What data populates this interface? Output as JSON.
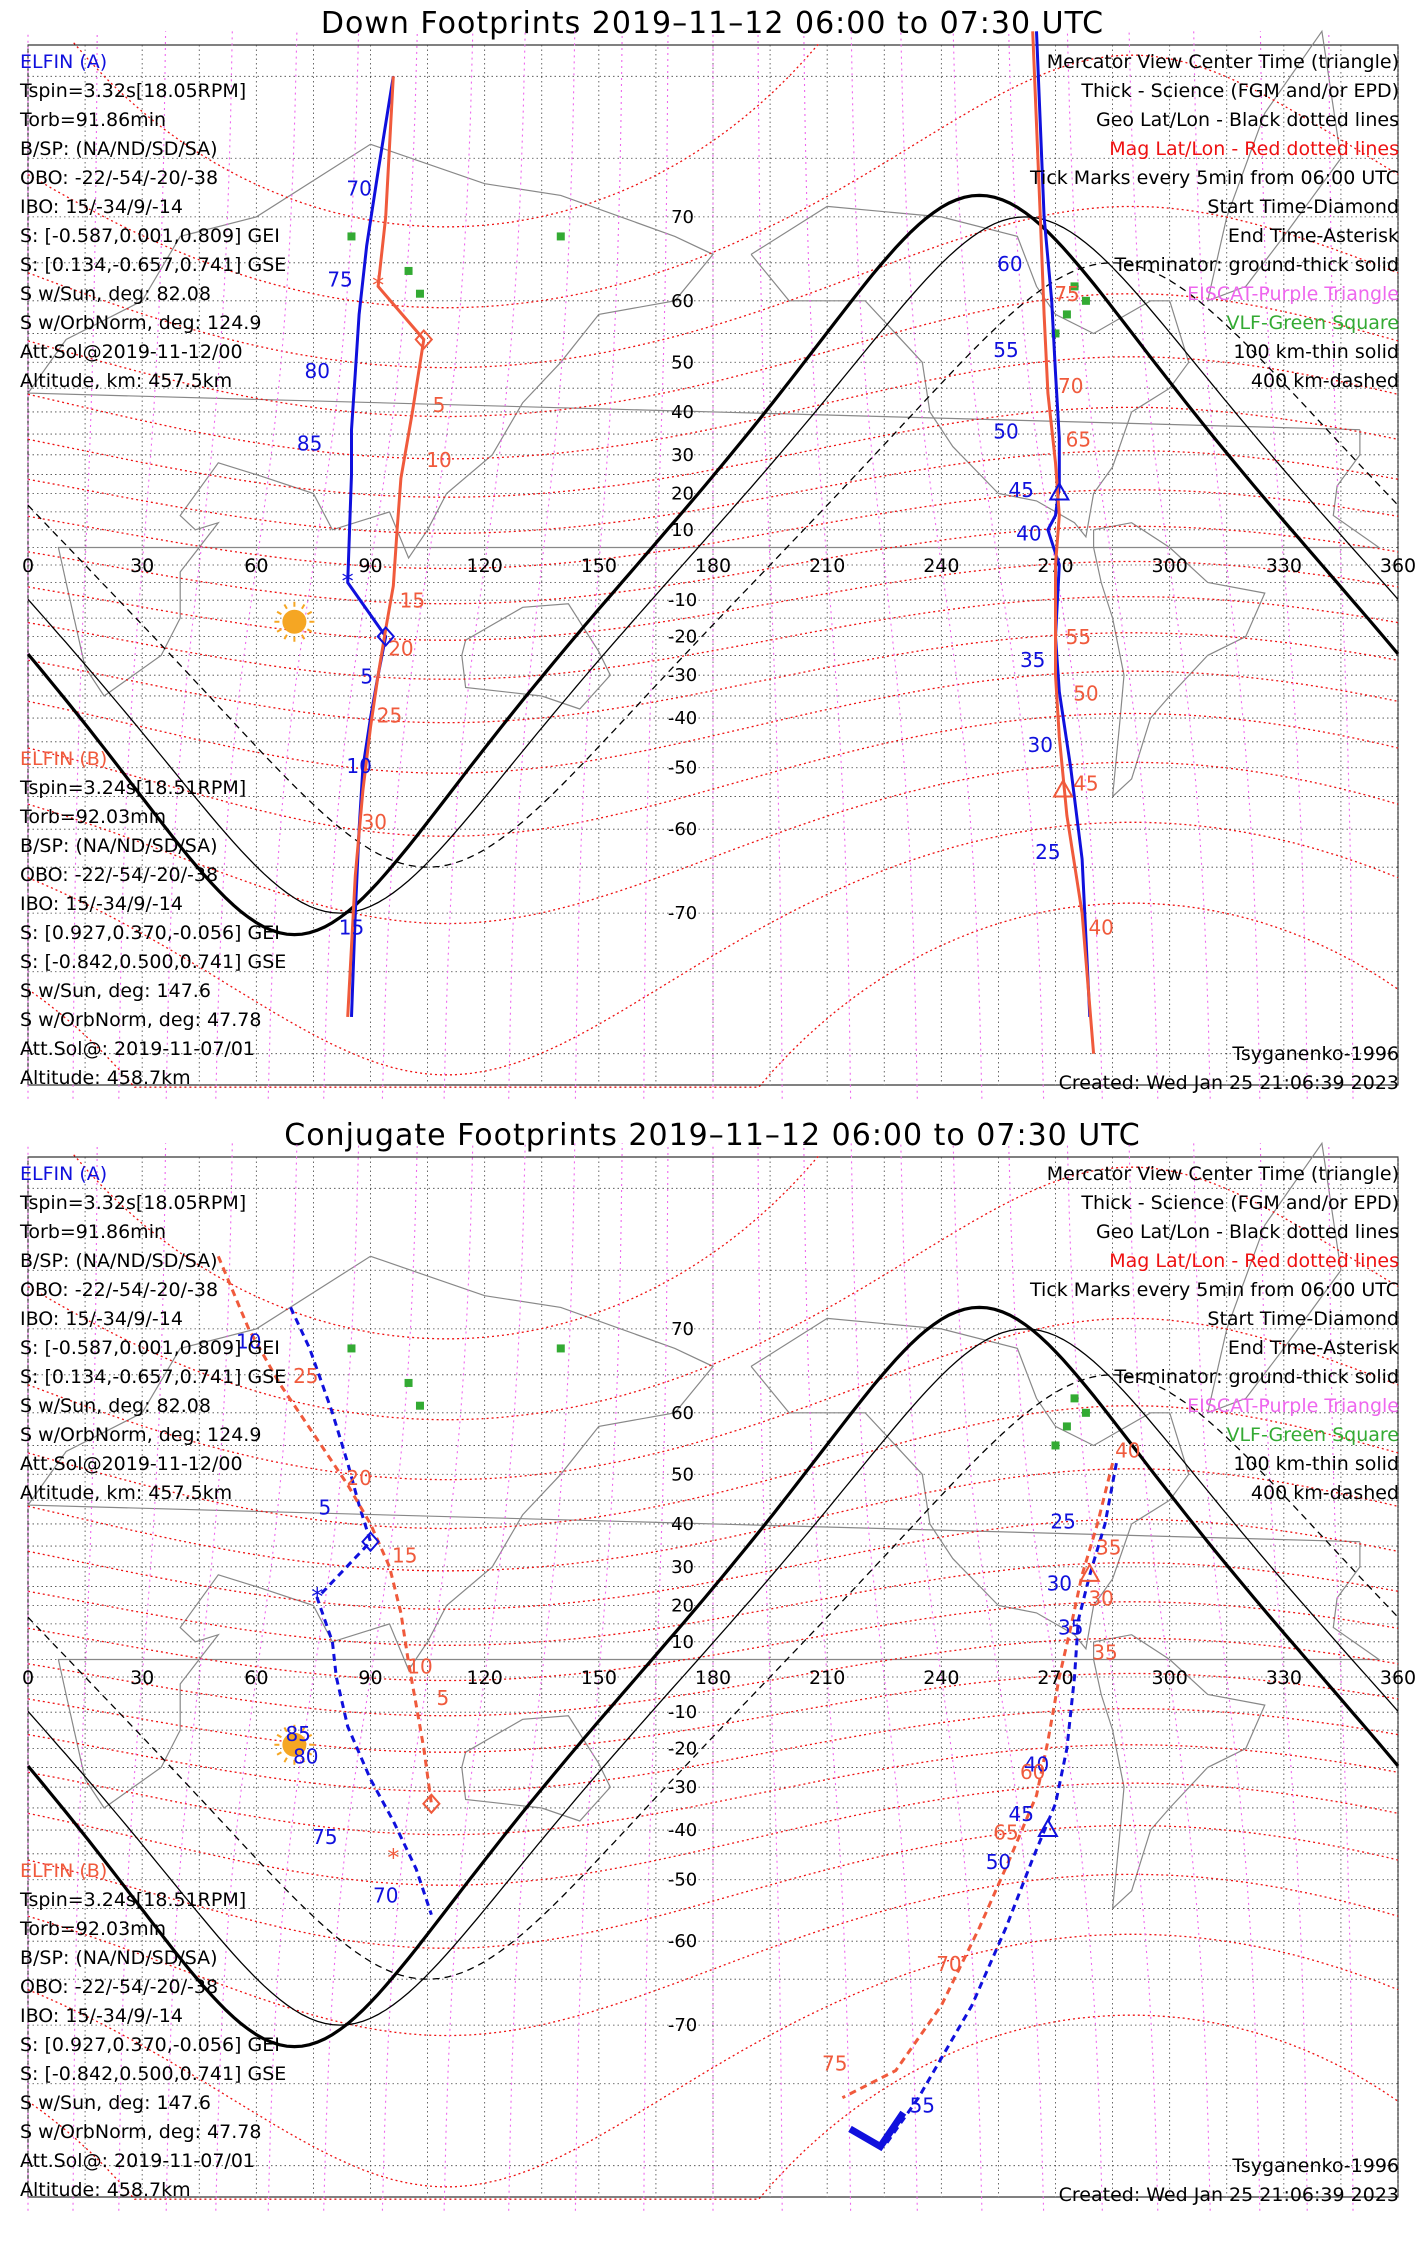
{
  "colors": {
    "elfin_a": "#1010dd",
    "elfin_b": "#f05a3c",
    "mag_grid": "#ee1111",
    "eiscat": "#ee66ee",
    "vlf": "#33aa33",
    "sun": "#f5a623"
  },
  "panels": [
    {
      "title": "Down Footprints 2019–11–12 06:00 to 07:30 UTC",
      "elfin_a": {
        "name": "ELFIN (A)",
        "lines": [
          "Tspin=3.32s[18.05RPM]",
          "Torb=91.86min",
          "B/SP: (NA/ND/SD/SA)",
          "OBO: -22/-54/-20/-38",
          "IBO: 15/-34/9/-14",
          "S: [-0.587,0.001,0.809] GEI",
          "S: [0.134,-0.657,0.741] GSE",
          "S w/Sun, deg: 82.08",
          "S w/OrbNorm, deg: 124.9",
          "Att.Sol@2019-11-12/00",
          "Altitude, km: 457.5km"
        ]
      },
      "elfin_b": {
        "name": "ELFIN (B)",
        "lines": [
          "Tspin=3.24s[18.51RPM]",
          "Torb=92.03min",
          "B/SP: (NA/ND/SD/SA)",
          "OBO: -22/-54/-20/-38",
          "IBO: 15/-34/9/-14",
          "S: [0.927,0.370,-0.056] GEI",
          "S: [-0.842,0.500,0.741] GSE",
          "S w/Sun, deg: 147.6",
          "S w/OrbNorm, deg: 47.78",
          "Att.Sol@: 2019-11-07/01",
          "Altitude: 458.7km"
        ]
      },
      "legend": [
        {
          "text": "Mercator View Center Time (triangle)",
          "color": "#000000"
        },
        {
          "text": "Thick - Science (FGM and/or EPD)",
          "color": "#000000"
        },
        {
          "text": "Geo Lat/Lon - Black dotted lines",
          "color": "#000000"
        },
        {
          "text": "Mag Lat/Lon - Red dotted lines",
          "color": "#ee1111"
        },
        {
          "text": "Tick Marks every 5min from 06:00 UTC",
          "color": "#000000"
        },
        {
          "text": "Start Time-Diamond",
          "color": "#000000"
        },
        {
          "text": "End Time-Asterisk",
          "color": "#000000"
        },
        {
          "text": "Terminator: ground-thick solid",
          "color": "#000000"
        },
        {
          "text": "EISCAT-Purple Triangle",
          "color": "#ee66ee"
        },
        {
          "text": "VLF-Green Square",
          "color": "#33aa33"
        },
        {
          "text": "100 km-thin solid",
          "color": "#000000"
        },
        {
          "text": "400 km-dashed",
          "color": "#000000"
        }
      ],
      "model": "Tsyganenko-1996",
      "created": "Created: Wed Jan 25 21:06:39 2023"
    },
    {
      "title": "Conjugate Footprints 2019–11–12 06:00 to 07:30 UTC",
      "elfin_a": {
        "name": "ELFIN (A)",
        "lines": [
          "Tspin=3.32s[18.05RPM]",
          "Torb=91.86min",
          "B/SP: (NA/ND/SD/SA)",
          "OBO: -22/-54/-20/-38",
          "IBO: 15/-34/9/-14",
          "S: [-0.587,0.001,0.809] GEI",
          "S: [0.134,-0.657,0.741] GSE",
          "S w/Sun, deg: 82.08",
          "S w/OrbNorm, deg: 124.9",
          "Att.Sol@2019-11-12/00",
          "Altitude, km: 457.5km"
        ]
      },
      "elfin_b": {
        "name": "ELFIN (B)",
        "lines": [
          "Tspin=3.24s[18.51RPM]",
          "Torb=92.03min",
          "B/SP: (NA/ND/SD/SA)",
          "OBO: -22/-54/-20/-38",
          "IBO: 15/-34/9/-14",
          "S: [0.927,0.370,-0.056] GEI",
          "S: [-0.842,0.500,0.741] GSE",
          "S w/Sun, deg: 147.6",
          "S w/OrbNorm, deg: 47.78",
          "Att.Sol@: 2019-11-07/01",
          "Altitude: 458.7km"
        ]
      },
      "legend": [
        {
          "text": "Mercator View Center Time (triangle)",
          "color": "#000000"
        },
        {
          "text": "Thick - Science (FGM and/or EPD)",
          "color": "#000000"
        },
        {
          "text": "Geo Lat/Lon - Black dotted lines",
          "color": "#000000"
        },
        {
          "text": "Mag Lat/Lon - Red dotted lines",
          "color": "#ee1111"
        },
        {
          "text": "Tick Marks every 5min from 06:00 UTC",
          "color": "#000000"
        },
        {
          "text": "Start Time-Diamond",
          "color": "#000000"
        },
        {
          "text": "End Time-Asterisk",
          "color": "#000000"
        },
        {
          "text": "Terminator: ground-thick solid",
          "color": "#000000"
        },
        {
          "text": "EISCAT-Purple Triangle",
          "color": "#ee66ee"
        },
        {
          "text": "VLF-Green Square",
          "color": "#33aa33"
        },
        {
          "text": "100 km-thin solid",
          "color": "#000000"
        },
        {
          "text": "400 km-dashed",
          "color": "#000000"
        }
      ],
      "model": "Tsyganenko-1996",
      "created": "Created: Wed Jan 25 21:06:39 2023"
    }
  ],
  "map": {
    "lon_labels": [
      "0",
      "30",
      "60",
      "90",
      "120",
      "150",
      "180",
      "210",
      "240",
      "270",
      "300",
      "330",
      "360"
    ],
    "lat_labels": [
      "70",
      "60",
      "50",
      "40",
      "30",
      "20",
      "10",
      "-10",
      "-20",
      "-30",
      "-40",
      "-50",
      "-60",
      "-70"
    ]
  },
  "tracks": {
    "down_a": [
      {
        "lon": 96,
        "lat": 80
      },
      {
        "lon": 92,
        "lat": 74
      },
      {
        "lon": 89,
        "lat": 67
      },
      {
        "lon": 87,
        "lat": 58
      },
      {
        "lon": 86,
        "lat": 48
      },
      {
        "lon": 85,
        "lat": 36
      },
      {
        "lon": 85,
        "lat": 25
      },
      {
        "lon": 84,
        "lat": -5
      },
      {
        "lon": 94,
        "lat": -20
      },
      {
        "lon": 92,
        "lat": -30
      },
      {
        "lon": 90,
        "lat": -40
      },
      {
        "lon": 88,
        "lat": -50
      },
      {
        "lon": 87,
        "lat": -60
      },
      {
        "lon": 86,
        "lat": -70
      },
      {
        "lon": 85,
        "lat": -78
      }
    ],
    "down_b": [
      {
        "lon": 96,
        "lat": 80
      },
      {
        "lon": 94,
        "lat": 70
      },
      {
        "lon": 92,
        "lat": 62
      },
      {
        "lon": 104,
        "lat": 54
      },
      {
        "lon": 101,
        "lat": 40
      },
      {
        "lon": 98,
        "lat": 24
      },
      {
        "lon": 97,
        "lat": 10
      },
      {
        "lon": 96,
        "lat": -6
      },
      {
        "lon": 94,
        "lat": -18
      },
      {
        "lon": 92,
        "lat": -30
      },
      {
        "lon": 90,
        "lat": -42
      },
      {
        "lon": 88,
        "lat": -54
      },
      {
        "lon": 86,
        "lat": -66
      },
      {
        "lon": 84,
        "lat": -78
      }
    ],
    "down_a2": [
      {
        "lon": 265,
        "lat": 82
      },
      {
        "lon": 267,
        "lat": 70
      },
      {
        "lon": 269,
        "lat": 60
      },
      {
        "lon": 270,
        "lat": 48
      },
      {
        "lon": 271,
        "lat": 34
      },
      {
        "lon": 271,
        "lat": 22
      },
      {
        "lon": 270,
        "lat": 14
      },
      {
        "lon": 268,
        "lat": 10
      },
      {
        "lon": 271,
        "lat": 0
      },
      {
        "lon": 270,
        "lat": -20
      },
      {
        "lon": 271,
        "lat": -34
      },
      {
        "lon": 274,
        "lat": -50
      },
      {
        "lon": 277,
        "lat": -64
      },
      {
        "lon": 279,
        "lat": -78
      }
    ],
    "down_b2": [
      {
        "lon": 264,
        "lat": 82
      },
      {
        "lon": 266,
        "lat": 70
      },
      {
        "lon": 267,
        "lat": 58
      },
      {
        "lon": 268,
        "lat": 44
      },
      {
        "lon": 270,
        "lat": 28
      },
      {
        "lon": 271,
        "lat": 14
      },
      {
        "lon": 270,
        "lat": 0
      },
      {
        "lon": 270,
        "lat": -16
      },
      {
        "lon": 270,
        "lat": -30
      },
      {
        "lon": 271,
        "lat": -44
      },
      {
        "lon": 273,
        "lat": -58
      },
      {
        "lon": 277,
        "lat": -70
      },
      {
        "lon": 280,
        "lat": -80
      }
    ],
    "conj_a": [
      {
        "lon": 69,
        "lat": 72
      },
      {
        "lon": 74,
        "lat": 68
      },
      {
        "lon": 80,
        "lat": 60
      },
      {
        "lon": 84,
        "lat": 52
      },
      {
        "lon": 87,
        "lat": 44
      },
      {
        "lon": 90,
        "lat": 36
      },
      {
        "lon": 76,
        "lat": 22
      },
      {
        "lon": 80,
        "lat": 10
      },
      {
        "lon": 81,
        "lat": 0
      },
      {
        "lon": 84,
        "lat": -14
      },
      {
        "lon": 90,
        "lat": -28
      },
      {
        "lon": 96,
        "lat": -38
      },
      {
        "lon": 102,
        "lat": -48
      },
      {
        "lon": 106,
        "lat": -56
      }
    ],
    "conj_b": [
      {
        "lon": 50,
        "lat": 76
      },
      {
        "lon": 58,
        "lat": 70
      },
      {
        "lon": 66,
        "lat": 64
      },
      {
        "lon": 76,
        "lat": 56
      },
      {
        "lon": 84,
        "lat": 48
      },
      {
        "lon": 90,
        "lat": 40
      },
      {
        "lon": 95,
        "lat": 30
      },
      {
        "lon": 98,
        "lat": 18
      },
      {
        "lon": 100,
        "lat": 4
      },
      {
        "lon": 102,
        "lat": -8
      },
      {
        "lon": 104,
        "lat": -20
      },
      {
        "lon": 106,
        "lat": -34
      }
    ],
    "conj_a2": [
      {
        "lon": 286,
        "lat": 52
      },
      {
        "lon": 283,
        "lat": 40
      },
      {
        "lon": 279,
        "lat": 28
      },
      {
        "lon": 276,
        "lat": 16
      },
      {
        "lon": 275,
        "lat": 0
      },
      {
        "lon": 273,
        "lat": -20
      },
      {
        "lon": 270,
        "lat": -34
      },
      {
        "lon": 264,
        "lat": -46
      },
      {
        "lon": 257,
        "lat": -58
      },
      {
        "lon": 248,
        "lat": -68
      },
      {
        "lon": 234,
        "lat": -76
      },
      {
        "lon": 225,
        "lat": -79
      }
    ],
    "conj_b2": [
      {
        "lon": 285,
        "lat": 52
      },
      {
        "lon": 281,
        "lat": 40
      },
      {
        "lon": 277,
        "lat": 28
      },
      {
        "lon": 274,
        "lat": 14
      },
      {
        "lon": 271,
        "lat": 0
      },
      {
        "lon": 268,
        "lat": -18
      },
      {
        "lon": 265,
        "lat": -32
      },
      {
        "lon": 258,
        "lat": -46
      },
      {
        "lon": 250,
        "lat": -58
      },
      {
        "lon": 240,
        "lat": -68
      },
      {
        "lon": 228,
        "lat": -74
      },
      {
        "lon": 214,
        "lat": -76
      }
    ]
  },
  "tick_labels": {
    "down_a": [
      {
        "t": "70",
        "lon": 87,
        "lat": 72
      },
      {
        "t": "75",
        "lon": 82,
        "lat": 62
      },
      {
        "t": "80",
        "lon": 76,
        "lat": 47
      },
      {
        "t": "85",
        "lon": 74,
        "lat": 31
      },
      {
        "t": "5",
        "lon": 89,
        "lat": -32
      },
      {
        "t": "10",
        "lon": 87,
        "lat": -51
      },
      {
        "t": "15",
        "lon": 85,
        "lat": -72
      }
    ],
    "down_b": [
      {
        "t": "5",
        "lon": 108,
        "lat": 40
      },
      {
        "t": "10",
        "lon": 108,
        "lat": 27
      },
      {
        "t": "15",
        "lon": 101,
        "lat": -12
      },
      {
        "t": "20",
        "lon": 98,
        "lat": -25
      },
      {
        "t": "25",
        "lon": 95,
        "lat": -41
      },
      {
        "t": "30",
        "lon": 91,
        "lat": -60
      }
    ],
    "down_a2": [
      {
        "t": "60",
        "lon": 258,
        "lat": 64
      },
      {
        "t": "55",
        "lon": 257,
        "lat": 51
      },
      {
        "t": "50",
        "lon": 257,
        "lat": 34
      },
      {
        "t": "45",
        "lon": 261,
        "lat": 19
      },
      {
        "t": "40",
        "lon": 263,
        "lat": 7
      },
      {
        "t": "35",
        "lon": 264,
        "lat": -28
      },
      {
        "t": "30",
        "lon": 266,
        "lat": -47
      },
      {
        "t": "25",
        "lon": 268,
        "lat": -64
      }
    ],
    "down_b2": [
      {
        "t": "75",
        "lon": 273,
        "lat": 60
      },
      {
        "t": "70",
        "lon": 274,
        "lat": 44
      },
      {
        "t": "65",
        "lon": 276,
        "lat": 32
      },
      {
        "t": "55",
        "lon": 276,
        "lat": -22
      },
      {
        "t": "50",
        "lon": 278,
        "lat": -36
      },
      {
        "t": "45",
        "lon": 278,
        "lat": -54
      },
      {
        "t": "40",
        "lon": 282,
        "lat": -72
      }
    ],
    "conj_a": [
      {
        "t": "10",
        "lon": 58,
        "lat": 68
      },
      {
        "t": "5",
        "lon": 78,
        "lat": 42
      },
      {
        "t": "85",
        "lon": 71,
        "lat": -18
      },
      {
        "t": "80",
        "lon": 73,
        "lat": -24
      },
      {
        "t": "75",
        "lon": 78,
        "lat": -43
      },
      {
        "t": "70",
        "lon": 94,
        "lat": -54
      }
    ],
    "conj_b": [
      {
        "t": "25",
        "lon": 73,
        "lat": 64
      },
      {
        "t": "20",
        "lon": 87,
        "lat": 48
      },
      {
        "t": "15",
        "lon": 99,
        "lat": 31
      },
      {
        "t": "10",
        "lon": 103,
        "lat": 1
      },
      {
        "t": "5",
        "lon": 109,
        "lat": -8
      }
    ],
    "conj_a2": [
      {
        "t": "25",
        "lon": 272,
        "lat": 39
      },
      {
        "t": "30",
        "lon": 271,
        "lat": 24
      },
      {
        "t": "35",
        "lon": 274,
        "lat": 12
      },
      {
        "t": "40",
        "lon": 265,
        "lat": -26
      },
      {
        "t": "45",
        "lon": 261,
        "lat": -38
      },
      {
        "t": "50",
        "lon": 255,
        "lat": -48
      },
      {
        "t": "55",
        "lon": 235,
        "lat": -77
      }
    ],
    "conj_b2": [
      {
        "t": "40",
        "lon": 289,
        "lat": 53
      },
      {
        "t": "35",
        "lon": 284,
        "lat": 33
      },
      {
        "t": "30",
        "lon": 282,
        "lat": 20
      },
      {
        "t": "35",
        "lon": 283,
        "lat": 5
      },
      {
        "t": "60",
        "lon": 264,
        "lat": -28
      },
      {
        "t": "65",
        "lon": 257,
        "lat": -42
      },
      {
        "t": "70",
        "lon": 242,
        "lat": -64
      },
      {
        "t": "75",
        "lon": 212,
        "lat": -74
      }
    ]
  }
}
